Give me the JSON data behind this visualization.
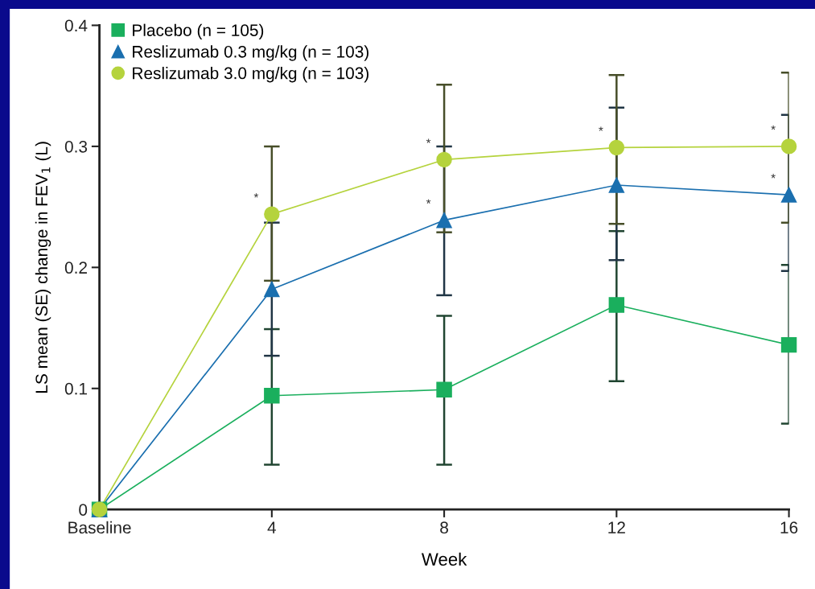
{
  "chart_data": {
    "type": "line",
    "xlabel": "Week",
    "ylabel": "LS mean (SE) change in FEV$_{1}$ (L)",
    "categories": [
      "Baseline",
      "4",
      "8",
      "12",
      "16"
    ],
    "ylim": [
      0,
      0.4
    ],
    "yticks": [
      0,
      0.1,
      0.2,
      0.3,
      0.4
    ],
    "grid": false,
    "legend": "top left",
    "line_style": "solid",
    "series": [
      {
        "name": "Placebo (n = 105)",
        "color": "#1aaf5d",
        "marker": "square",
        "values": [
          0,
          0.094,
          0.099,
          0.169,
          0.136
        ],
        "errors": [
          null,
          [
            0.037,
            0.149
          ],
          [
            0.037,
            0.16
          ],
          [
            0.106,
            0.23
          ],
          [
            0.071,
            0.202
          ]
        ]
      },
      {
        "name": "Reslizumab 0.3 mg/kg (n = 103)",
        "color": "#1a6faf",
        "marker": "triangle",
        "values": [
          0,
          0.182,
          0.239,
          0.268,
          0.26
        ],
        "errors": [
          null,
          [
            0.127,
            0.237
          ],
          [
            0.177,
            0.3
          ],
          [
            0.206,
            0.332
          ],
          [
            0.197,
            0.326
          ]
        ]
      },
      {
        "name": "Reslizumab 3.0 mg/kg (n = 103)",
        "color": "#b5d33d",
        "marker": "circle",
        "values": [
          0,
          0.244,
          0.289,
          0.299,
          0.3
        ],
        "errors": [
          null,
          [
            0.189,
            0.3
          ],
          [
            0.229,
            0.351
          ],
          [
            0.236,
            0.359
          ],
          [
            0.237,
            0.361
          ]
        ]
      }
    ],
    "annotations": [
      {
        "text": "*",
        "x": "4",
        "y": 0.244
      },
      {
        "text": "*",
        "x": "8",
        "y": 0.289
      },
      {
        "text": "*",
        "x": "8",
        "y": 0.239
      },
      {
        "text": "*",
        "x": "12",
        "y": 0.299
      },
      {
        "text": "*",
        "x": "16",
        "y": 0.3
      },
      {
        "text": "*",
        "x": "16",
        "y": 0.26
      }
    ]
  }
}
